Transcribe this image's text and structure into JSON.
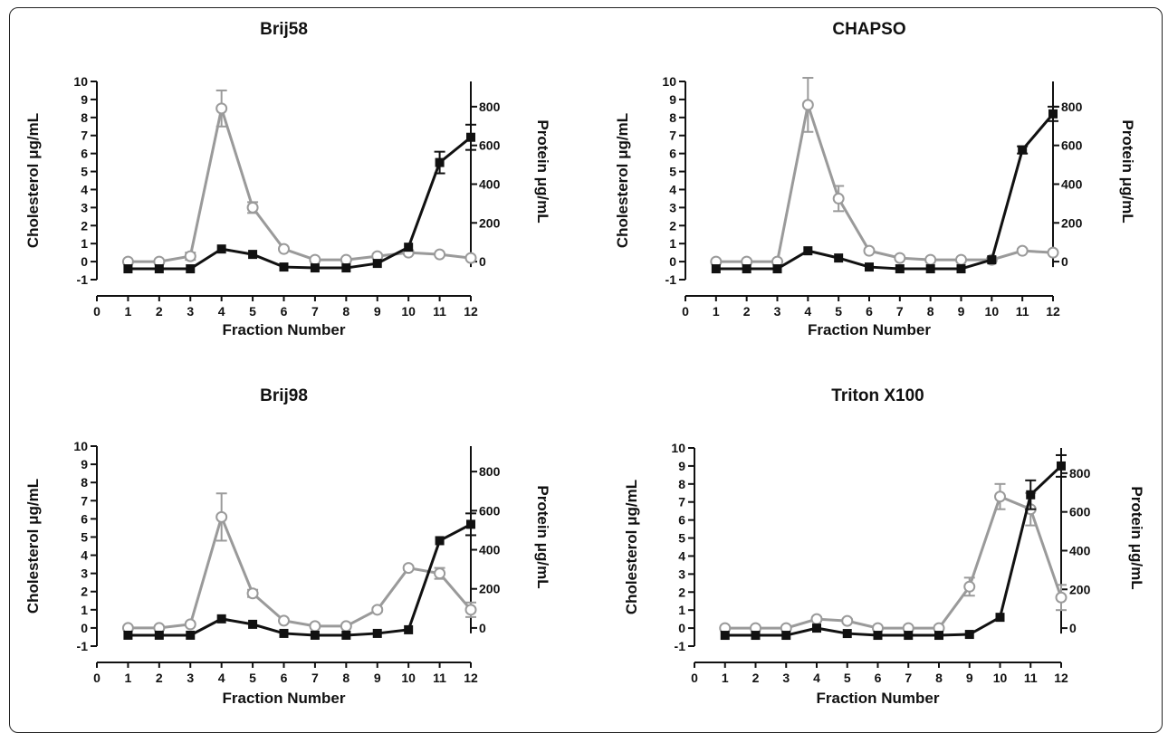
{
  "chart_data": [
    {
      "type": "line",
      "title": "Brij58",
      "xlabel": "Fraction Number",
      "ylabel": "Cholesterol μg/mL",
      "ylabel_right": "Protein μg/mL",
      "x_ticks": [
        0,
        1,
        2,
        3,
        4,
        5,
        6,
        7,
        8,
        9,
        10,
        11,
        12
      ],
      "ylim": [
        -1,
        10
      ],
      "ylim_right": [
        0,
        800
      ],
      "y_ticks": [
        -1,
        0,
        1,
        2,
        3,
        4,
        5,
        6,
        7,
        8,
        9,
        10
      ],
      "y_ticks_right": [
        0,
        200,
        400,
        600,
        800
      ],
      "x": [
        1,
        2,
        3,
        4,
        5,
        6,
        7,
        8,
        9,
        10,
        11,
        12
      ],
      "series": [
        {
          "marker": "open-circle",
          "color": "#9a9a9a",
          "values": [
            0,
            0,
            0.3,
            8.5,
            3.0,
            0.7,
            0.1,
            0.1,
            0.3,
            0.5,
            0.4,
            0.2
          ],
          "errors": [
            0,
            0,
            0.2,
            1.0,
            0.3,
            0.1,
            0,
            0,
            0.1,
            0.1,
            0,
            0
          ]
        },
        {
          "marker": "filled-square",
          "color": "#111111",
          "values": [
            -0.4,
            -0.4,
            -0.4,
            0.7,
            0.4,
            -0.3,
            -0.35,
            -0.35,
            -0.1,
            0.8,
            5.5,
            6.9
          ],
          "errors": [
            0,
            0,
            0,
            0,
            0,
            0,
            0,
            0,
            0,
            0,
            0.6,
            0.7
          ]
        }
      ]
    },
    {
      "type": "line",
      "title": "CHAPSO",
      "xlabel": "Fraction Number",
      "ylabel": "Cholesterol μg/mL",
      "ylabel_right": "Protein μg/mL",
      "x_ticks": [
        0,
        1,
        2,
        3,
        4,
        5,
        6,
        7,
        8,
        9,
        10,
        11,
        12
      ],
      "ylim": [
        -1,
        10
      ],
      "ylim_right": [
        0,
        800
      ],
      "y_ticks": [
        -1,
        0,
        1,
        2,
        3,
        4,
        5,
        6,
        7,
        8,
        9,
        10
      ],
      "y_ticks_right": [
        0,
        200,
        400,
        600,
        800
      ],
      "x": [
        1,
        2,
        3,
        4,
        5,
        6,
        7,
        8,
        9,
        10,
        11,
        12
      ],
      "series": [
        {
          "marker": "open-circle",
          "color": "#9a9a9a",
          "values": [
            0,
            0,
            0,
            8.7,
            3.5,
            0.6,
            0.2,
            0.1,
            0.1,
            0.1,
            0.6,
            0.5
          ],
          "errors": [
            0,
            0,
            0,
            1.5,
            0.7,
            0.1,
            0,
            0,
            0,
            0,
            0.1,
            0
          ]
        },
        {
          "marker": "filled-square",
          "color": "#111111",
          "values": [
            -0.4,
            -0.4,
            -0.4,
            0.6,
            0.2,
            -0.3,
            -0.4,
            -0.4,
            -0.4,
            0.1,
            6.2,
            8.2
          ],
          "errors": [
            0,
            0,
            0,
            0,
            0,
            0,
            0,
            0,
            0,
            0,
            0.2,
            0.4
          ]
        }
      ]
    },
    {
      "type": "line",
      "title": "Brij98",
      "xlabel": "Fraction Number",
      "ylabel": "Cholesterol μg/mL",
      "ylabel_right": "Protein μg/mL",
      "x_ticks": [
        0,
        1,
        2,
        3,
        4,
        5,
        6,
        7,
        8,
        9,
        10,
        11,
        12
      ],
      "ylim": [
        -1,
        10
      ],
      "ylim_right": [
        0,
        800
      ],
      "y_ticks": [
        -1,
        0,
        1,
        2,
        3,
        4,
        5,
        6,
        7,
        8,
        9,
        10
      ],
      "y_ticks_right": [
        0,
        200,
        400,
        600,
        800
      ],
      "x": [
        1,
        2,
        3,
        4,
        5,
        6,
        7,
        8,
        9,
        10,
        11,
        12
      ],
      "series": [
        {
          "marker": "open-circle",
          "color": "#9a9a9a",
          "values": [
            0,
            0,
            0.2,
            6.1,
            1.9,
            0.4,
            0.1,
            0.1,
            1.0,
            3.3,
            3.0,
            1.0
          ],
          "errors": [
            0,
            0,
            0,
            1.3,
            0.2,
            0,
            0,
            0,
            0.1,
            0.1,
            0.3,
            0.4
          ]
        },
        {
          "marker": "filled-square",
          "color": "#111111",
          "values": [
            -0.4,
            -0.4,
            -0.4,
            0.5,
            0.2,
            -0.3,
            -0.4,
            -0.4,
            -0.3,
            -0.1,
            4.8,
            5.7
          ],
          "errors": [
            0,
            0,
            0,
            0,
            0,
            0,
            0,
            0,
            0,
            0,
            0,
            0.6
          ]
        }
      ]
    },
    {
      "type": "line",
      "title": "Triton X100",
      "xlabel": "Fraction Number",
      "ylabel": "Cholesterol μg/mL",
      "ylabel_right": "Protein μg/mL",
      "x_ticks": [
        0,
        1,
        2,
        3,
        4,
        5,
        6,
        7,
        8,
        9,
        10,
        11,
        12
      ],
      "ylim": [
        -1,
        10
      ],
      "ylim_right": [
        0,
        800
      ],
      "y_ticks": [
        -1,
        0,
        1,
        2,
        3,
        4,
        5,
        6,
        7,
        8,
        9,
        10
      ],
      "y_ticks_right": [
        0,
        200,
        400,
        600,
        800
      ],
      "x": [
        1,
        2,
        3,
        4,
        5,
        6,
        7,
        8,
        9,
        10,
        11,
        12
      ],
      "series": [
        {
          "marker": "open-circle",
          "color": "#9a9a9a",
          "values": [
            0,
            0,
            0,
            0.5,
            0.4,
            0,
            0,
            0,
            2.3,
            7.3,
            6.6,
            1.7
          ],
          "errors": [
            0,
            0,
            0,
            0.1,
            0.1,
            0,
            0,
            0,
            0.5,
            0.7,
            0.9,
            0.7
          ]
        },
        {
          "marker": "filled-square",
          "color": "#111111",
          "values": [
            -0.4,
            -0.4,
            -0.4,
            0,
            -0.3,
            -0.4,
            -0.4,
            -0.4,
            -0.35,
            0.6,
            7.4,
            9.0
          ],
          "errors": [
            0,
            0,
            0,
            0,
            0,
            0,
            0,
            0,
            0,
            0,
            0.8,
            0.6
          ]
        }
      ]
    }
  ]
}
